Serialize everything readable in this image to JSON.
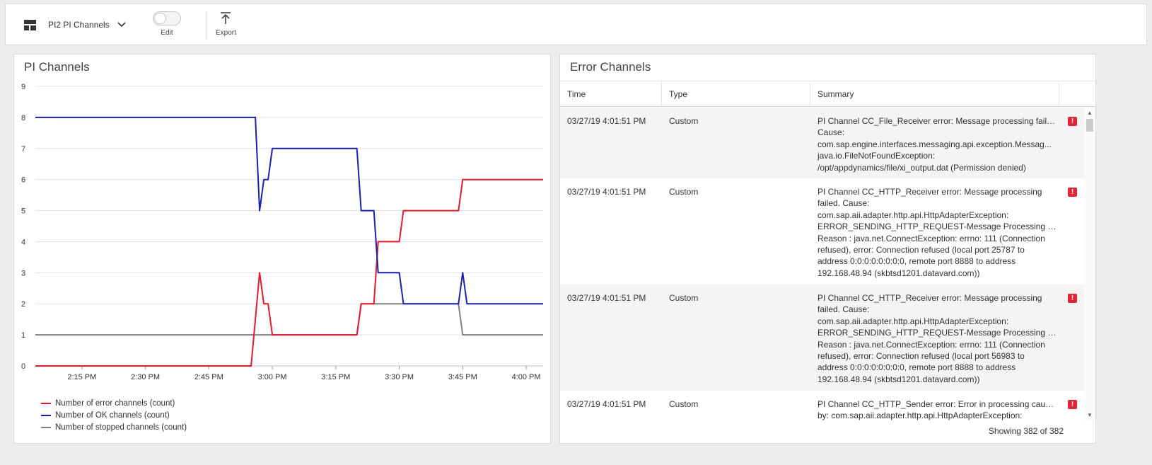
{
  "toolbar": {
    "dashboard_name": "PI2 PI Channels",
    "edit_label": "Edit",
    "export_label": "Export"
  },
  "chart_panel": {
    "title": "PI Channels"
  },
  "chart_data": {
    "type": "line",
    "title": "PI Channels",
    "x_ticks": [
      "2:15 PM",
      "2:30 PM",
      "2:45 PM",
      "3:00 PM",
      "3:15 PM",
      "3:30 PM",
      "3:45 PM",
      "4:00 PM"
    ],
    "y_ticks": [
      0,
      1,
      2,
      3,
      4,
      5,
      6,
      7,
      8,
      9
    ],
    "ylim": [
      0,
      9
    ],
    "xlim": [
      "2:04 PM",
      "4:04 PM"
    ],
    "grid": true,
    "legend_position": "bottom-left",
    "series": [
      {
        "name": "Number of error channels (count)",
        "color": "#e0192d",
        "points": [
          [
            "2:04 PM",
            0
          ],
          [
            "2:55 PM",
            0
          ],
          [
            "2:57 PM",
            3
          ],
          [
            "2:58 PM",
            2
          ],
          [
            "2:59 PM",
            2
          ],
          [
            "3:00 PM",
            1
          ],
          [
            "3:20 PM",
            1
          ],
          [
            "3:21 PM",
            2
          ],
          [
            "3:24 PM",
            2
          ],
          [
            "3:25 PM",
            4
          ],
          [
            "3:30 PM",
            4
          ],
          [
            "3:31 PM",
            5
          ],
          [
            "3:44 PM",
            5
          ],
          [
            "3:45 PM",
            6
          ],
          [
            "4:04 PM",
            6
          ]
        ]
      },
      {
        "name": "Number of OK channels (count)",
        "color": "#1a20a8",
        "points": [
          [
            "2:04 PM",
            8
          ],
          [
            "2:56 PM",
            8
          ],
          [
            "2:57 PM",
            5
          ],
          [
            "2:58 PM",
            6
          ],
          [
            "2:59 PM",
            6
          ],
          [
            "3:00 PM",
            7
          ],
          [
            "3:20 PM",
            7
          ],
          [
            "3:21 PM",
            5
          ],
          [
            "3:24 PM",
            5
          ],
          [
            "3:25 PM",
            3
          ],
          [
            "3:30 PM",
            3
          ],
          [
            "3:31 PM",
            2
          ],
          [
            "3:44 PM",
            2
          ],
          [
            "3:45 PM",
            3
          ],
          [
            "3:46 PM",
            2
          ],
          [
            "4:04 PM",
            2
          ]
        ]
      },
      {
        "name": "Number of stopped channels (count)",
        "color": "#808080",
        "points": [
          [
            "2:04 PM",
            1
          ],
          [
            "3:20 PM",
            1
          ],
          [
            "3:21 PM",
            2
          ],
          [
            "3:44 PM",
            2
          ],
          [
            "3:45 PM",
            1
          ],
          [
            "4:04 PM",
            1
          ]
        ]
      }
    ]
  },
  "table_panel": {
    "title": "Error Channels",
    "columns": [
      "Time",
      "Type",
      "Summary"
    ],
    "rows": [
      {
        "time": "03/27/19 4:01:51 PM",
        "type": "Custom",
        "summary": [
          "PI Channel CC_File_Receiver error: Message processing failed.",
          "Cause:",
          "com.sap.engine.interfaces.messaging.api.exception.Messag...",
          "java.io.FileNotFoundException:",
          "/opt/appdynamics/file/xi_output.dat (Permission denied)"
        ]
      },
      {
        "time": "03/27/19 4:01:51 PM",
        "type": "Custom",
        "summary": [
          "PI Channel CC_HTTP_Receiver error: Message processing",
          "failed. Cause:",
          "com.sap.aii.adapter.http.api.HttpAdapterException:",
          "ERROR_SENDING_HTTP_REQUEST-Message Processing Failed.",
          "Reason : java.net.ConnectException: errno: 111 (Connection",
          "refused), error: Connection refused (local port 25787 to",
          "address 0:0:0:0:0:0:0:0, remote port 8888 to address",
          "192.168.48.94 (skbtsd1201.datavard.com))"
        ]
      },
      {
        "time": "03/27/19 4:01:51 PM",
        "type": "Custom",
        "summary": [
          "PI Channel CC_HTTP_Receiver error: Message processing",
          "failed. Cause:",
          "com.sap.aii.adapter.http.api.HttpAdapterException:",
          "ERROR_SENDING_HTTP_REQUEST-Message Processing Failed.",
          "Reason : java.net.ConnectException: errno: 111 (Connection",
          "refused), error: Connection refused (local port 56983 to",
          "address 0:0:0:0:0:0:0:0, remote port 8888 to address",
          "192.168.48.94 (skbtsd1201.datavard.com))"
        ]
      },
      {
        "time": "03/27/19 4:01:51 PM",
        "type": "Custom",
        "summary": [
          "PI Channel CC_HTTP_Sender error: Error in processing caused",
          "by: com.sap.aii.adapter.http.api.HttpAdapterException:"
        ]
      }
    ],
    "row_icon": "!",
    "footer": "Showing 382 of 382"
  }
}
